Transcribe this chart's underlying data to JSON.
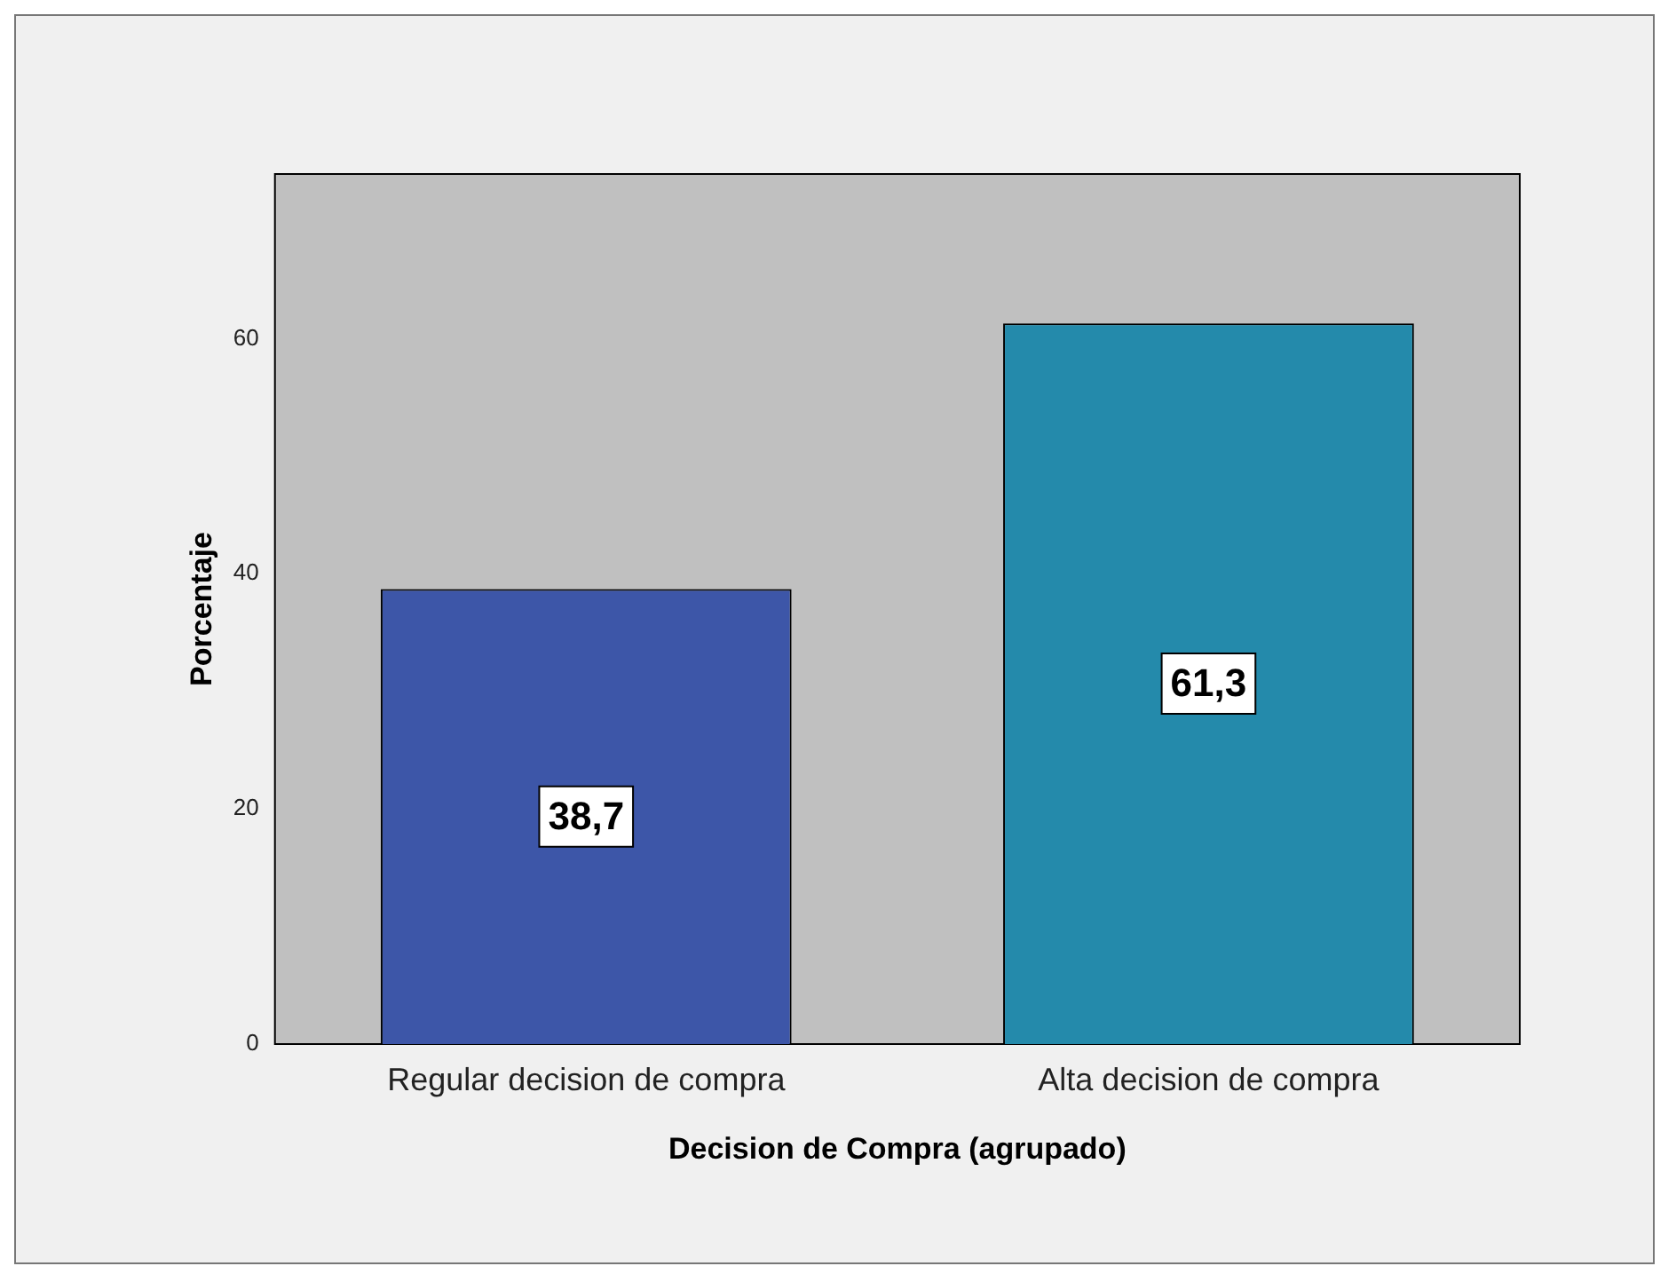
{
  "chart_data": {
    "type": "bar",
    "xlabel": "Decision de Compra (agrupado)",
    "ylabel": "Porcentaje",
    "categories": [
      "Regular decision de compra",
      "Alta decision de compra"
    ],
    "values": [
      38.7,
      61.3
    ],
    "colors": [
      "#3d56a8",
      "#248aab"
    ],
    "value_labels": [
      "38,7",
      "61,3"
    ],
    "ylim": [
      0,
      74
    ],
    "yticks": [
      0,
      20,
      40,
      60
    ],
    "grid": false,
    "legend": false
  }
}
